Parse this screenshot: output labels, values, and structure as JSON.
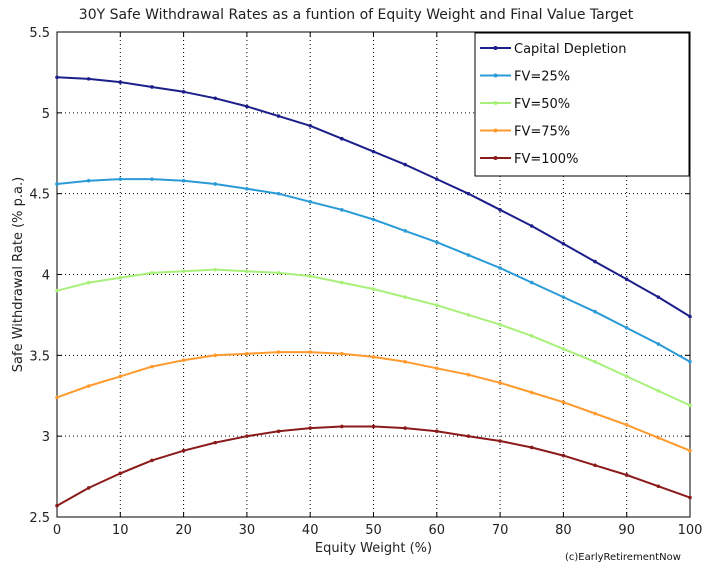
{
  "chart_data": {
    "type": "line",
    "title": "30Y Safe Withdrawal Rates as a funtion of Equity Weight and Final Value Target",
    "xlabel": "Equity Weight (%)",
    "ylabel": "Safe Withdrawal Rate (% p.a.)",
    "xlim": [
      0,
      100
    ],
    "ylim": [
      2.5,
      5.5
    ],
    "xticks": [
      0,
      10,
      20,
      30,
      40,
      50,
      60,
      70,
      80,
      90,
      100
    ],
    "yticks": [
      2.5,
      3,
      3.5,
      4,
      4.5,
      5,
      5.5
    ],
    "ytick_labels": [
      "2.5",
      "3",
      "3.5",
      "4",
      "4.5",
      "5",
      "5.5"
    ],
    "grid": true,
    "legend_position": "top-right",
    "x": [
      0,
      5,
      10,
      15,
      20,
      25,
      30,
      35,
      40,
      45,
      50,
      55,
      60,
      65,
      70,
      75,
      80,
      85,
      90,
      95,
      100
    ],
    "series": [
      {
        "name": "Capital Depletion",
        "color": "#1c1f8a",
        "values": [
          5.22,
          5.21,
          5.19,
          5.16,
          5.13,
          5.09,
          5.04,
          4.98,
          4.92,
          4.84,
          4.76,
          4.68,
          4.59,
          4.5,
          4.4,
          4.3,
          4.19,
          4.08,
          3.97,
          3.86,
          3.74
        ]
      },
      {
        "name": "FV=25%",
        "color": "#2b9bd8",
        "values": [
          4.56,
          4.58,
          4.59,
          4.59,
          4.58,
          4.56,
          4.53,
          4.5,
          4.45,
          4.4,
          4.34,
          4.27,
          4.2,
          4.12,
          4.04,
          3.95,
          3.86,
          3.77,
          3.67,
          3.57,
          3.46
        ]
      },
      {
        "name": "FV=50%",
        "color": "#a8f07a",
        "values": [
          3.9,
          3.95,
          3.98,
          4.01,
          4.02,
          4.03,
          4.02,
          4.01,
          3.99,
          3.95,
          3.91,
          3.86,
          3.81,
          3.75,
          3.69,
          3.62,
          3.54,
          3.46,
          3.37,
          3.28,
          3.19
        ]
      },
      {
        "name": "FV=75%",
        "color": "#ff9a2e",
        "values": [
          3.24,
          3.31,
          3.37,
          3.43,
          3.47,
          3.5,
          3.51,
          3.52,
          3.52,
          3.51,
          3.49,
          3.46,
          3.42,
          3.38,
          3.33,
          3.27,
          3.21,
          3.14,
          3.07,
          2.99,
          2.91
        ]
      },
      {
        "name": "FV=100%",
        "color": "#8b1a1a",
        "values": [
          2.57,
          2.68,
          2.77,
          2.85,
          2.91,
          2.96,
          3.0,
          3.03,
          3.05,
          3.06,
          3.06,
          3.05,
          3.03,
          3.0,
          2.97,
          2.93,
          2.88,
          2.82,
          2.76,
          2.69,
          2.62
        ]
      }
    ],
    "credit": "(c)EarlyRetirementNow"
  }
}
